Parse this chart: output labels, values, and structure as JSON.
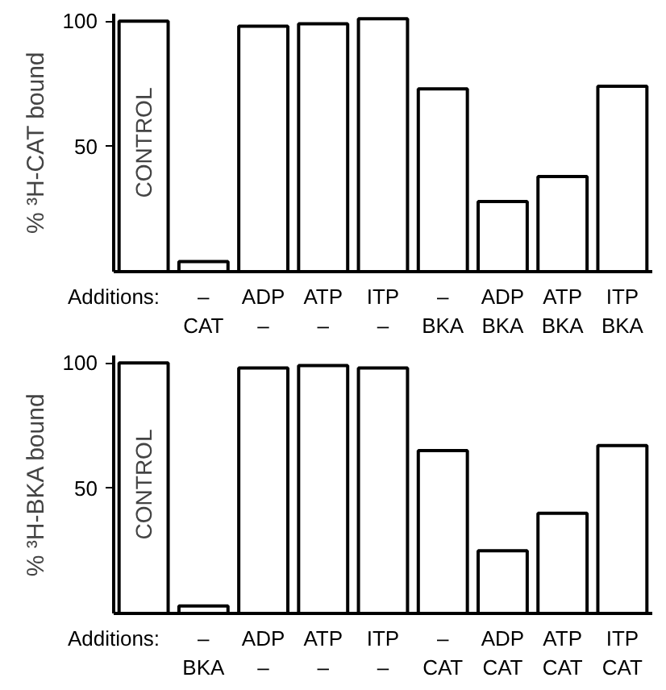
{
  "chart_data": [
    {
      "type": "bar",
      "ylabel": "% ³H-CAT bound",
      "categories": [
        null,
        "–\nCAT",
        "ADP\n–",
        "ATP\n–",
        "ITP\n–",
        "–\nBKA",
        "ADP\nBKA",
        "ATP\nBKA",
        "ITP\nBKA"
      ],
      "series": [
        {
          "color": "#ffffff",
          "values": [
            100,
            4,
            98,
            99,
            101,
            73,
            28,
            38,
            74
          ]
        }
      ],
      "ylim": [
        0,
        103
      ],
      "yticks": [
        50,
        100
      ],
      "grid": false,
      "annotations": [
        "CONTROL",
        "Additions:"
      ]
    },
    {
      "type": "bar",
      "ylabel": "% ³H-BKA bound",
      "categories": [
        null,
        "–\nBKA",
        "ADP\n–",
        "ATP\n–",
        "ITP\n–",
        "–\nCAT",
        "ADP\nCAT",
        "ATP\nCAT",
        "ITP\nCAT"
      ],
      "series": [
        {
          "color": "#ffffff",
          "values": [
            100,
            3,
            98,
            99,
            98,
            65,
            25,
            40,
            67
          ]
        }
      ],
      "ylim": [
        0,
        103
      ],
      "yticks": [
        50,
        100
      ],
      "grid": false,
      "annotations": [
        "CONTROL",
        "Additions:"
      ]
    }
  ]
}
